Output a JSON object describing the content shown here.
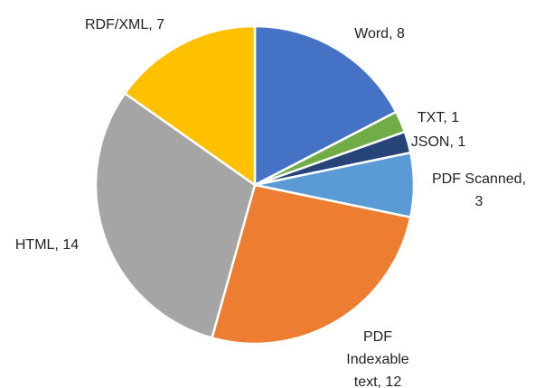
{
  "chart_data": {
    "type": "pie",
    "values": [
      8,
      1,
      1,
      3,
      12,
      14,
      7
    ],
    "value_labels": [
      "Word, 8",
      "TXT, 1",
      "JSON, 1",
      "PDF Scanned,\n3",
      "PDF\nIndexable\ntext, 12",
      "HTML, 14",
      "RDF/XML, 7"
    ],
    "colors": [
      "#4472c4",
      "#70ad47",
      "#264478",
      "#5b9bd5",
      "#ed7d31",
      "#a5a5a5",
      "#ffc000"
    ]
  }
}
